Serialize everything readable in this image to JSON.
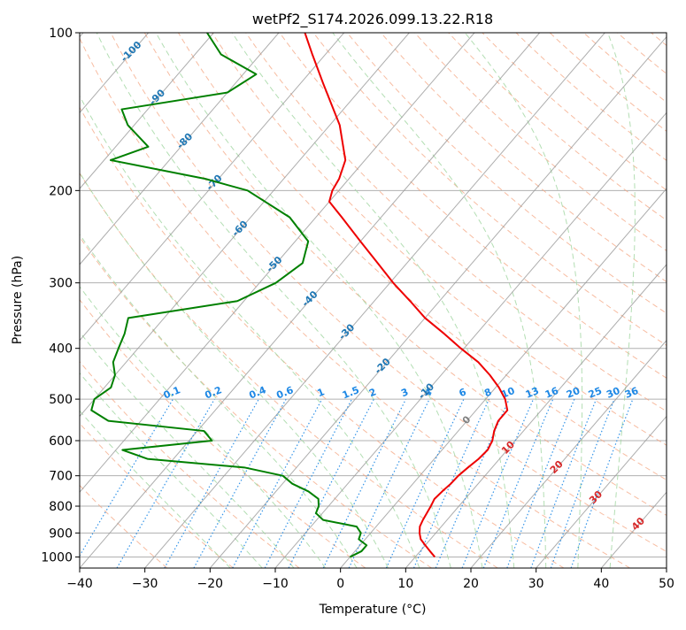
{
  "chart_data": {
    "type": "skew-t",
    "title": "wetPf2_S174.2026.099.13.22.R18",
    "xlabel": "Temperature (°C)",
    "ylabel": "Pressure (hPa)",
    "xlim": [
      -40,
      50
    ],
    "ylim": [
      1050,
      100
    ],
    "skew": 30,
    "x_ticks": [
      -40,
      -30,
      -20,
      -10,
      0,
      10,
      20,
      30,
      40,
      50
    ],
    "x_tick_labels": [
      "−40",
      "−30",
      "−20",
      "−10",
      "0",
      "10",
      "20",
      "30",
      "40",
      "50"
    ],
    "y_ticks": [
      1000,
      900,
      800,
      700,
      600,
      500,
      400,
      300,
      200,
      100
    ],
    "y_tick_labels": [
      "1000",
      "900",
      "800",
      "700",
      "600",
      "500",
      "400",
      "300",
      "200",
      "100"
    ],
    "colors": {
      "temperature": "#ee0000",
      "dewpoint": "#008000",
      "isotherm": "#999999",
      "dry_adiabat": "#f4a582",
      "moist_adiabat": "#a6d8a6",
      "mixing_ratio": "#1e88e5",
      "isotherm_label": "#1f77b4",
      "moist_label": "#d62728",
      "zero_label": "#808080"
    },
    "series": [
      {
        "name": "Temperature",
        "pressure": [
          1000,
          975,
          950,
          925,
          900,
          875,
          850,
          825,
          800,
          775,
          750,
          725,
          700,
          675,
          650,
          625,
          600,
          575,
          550,
          525,
          500,
          475,
          450,
          425,
          400,
          375,
          350,
          325,
          300,
          275,
          250,
          225,
          210,
          200,
          190,
          175,
          150,
          125,
          110,
          100
        ],
        "values": [
          13,
          11.5,
          10,
          8.5,
          7.5,
          6.7,
          6.3,
          6.0,
          5.7,
          5.3,
          5.5,
          5.8,
          5.9,
          6.3,
          6.8,
          7.0,
          6.5,
          5.5,
          4.8,
          4.8,
          3.0,
          0.5,
          -2.5,
          -6.0,
          -10.5,
          -15.0,
          -20.0,
          -24.5,
          -29.5,
          -34.5,
          -40.0,
          -46.0,
          -50.0,
          -51.0,
          -51.5,
          -53.0,
          -58.5,
          -66.5,
          -72.0,
          -76.0
        ]
      },
      {
        "name": "Dewpoint",
        "pressure": [
          1000,
          975,
          950,
          925,
          900,
          875,
          850,
          825,
          800,
          775,
          750,
          725,
          700,
          675,
          650,
          625,
          600,
          575,
          550,
          525,
          500,
          475,
          450,
          425,
          400,
          375,
          350,
          325,
          300,
          275,
          250,
          225,
          200,
          190,
          175,
          165,
          150,
          140,
          130,
          120,
          110,
          100
        ],
        "values": [
          0.0,
          1.0,
          1.0,
          -1.0,
          -1.5,
          -3.0,
          -9.0,
          -11.0,
          -11.5,
          -12.5,
          -15.0,
          -18.5,
          -21.0,
          -28.0,
          -44.0,
          -49.0,
          -36.5,
          -39.0,
          -55.0,
          -59.0,
          -60.0,
          -59.0,
          -60.0,
          -62.0,
          -63.0,
          -64.0,
          -65.5,
          -51.0,
          -47.5,
          -46.0,
          -48.0,
          -54.0,
          -64.0,
          -72.0,
          -89.0,
          -85.0,
          -91.0,
          -94.0,
          -80.0,
          -78.0,
          -86.0,
          -91.0
        ]
      }
    ],
    "isotherm_labels": [
      "-100",
      "-90",
      "-80",
      "-70",
      "-60",
      "-50",
      "-40",
      "-30",
      "-20",
      "-10",
      "0",
      "10",
      "20",
      "30",
      "40"
    ],
    "mixing_ratio_labels": [
      "0.1",
      "0.2",
      "0.4",
      "0.6",
      "1",
      "1.5",
      "2",
      "3",
      "4",
      "6",
      "8",
      "10",
      "13",
      "16",
      "20",
      "25",
      "30",
      "36"
    ],
    "mixing_ratio_values": [
      0.1,
      0.2,
      0.4,
      0.6,
      1,
      1.5,
      2,
      3,
      4,
      6,
      8,
      10,
      13,
      16,
      20,
      25,
      30,
      36
    ]
  }
}
